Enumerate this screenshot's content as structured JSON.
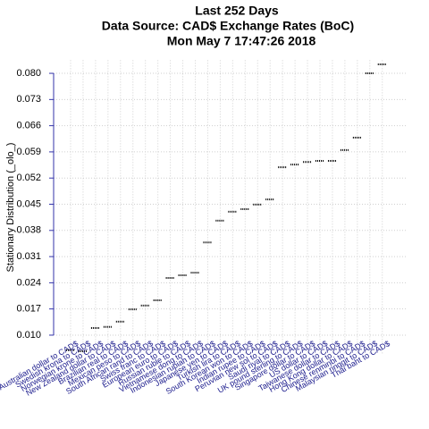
{
  "chart_data": {
    "type": "point",
    "title": [
      "Last 252 Days",
      "Data Source: CAD$ Exchange Rates (BoC)",
      "Mon May  7 17:47:26 2018"
    ],
    "y_label": "Stationary Distribution (_olo_)",
    "categories": [
      "Australian dollar to CAD$",
      "Swedish krona to CAD$",
      "Norwegian krone to CAD$",
      "New Zealand dollar to CAD$",
      "Brazilian real to CAD$",
      "Mexican peso to CAD$",
      "South African rand to CAD$",
      "Swiss franc to CAD$",
      "European euro to CAD$",
      "Russian ruble to CAD$",
      "Vietnamese dong to CAD$",
      "Indonesian rupiah to CAD$",
      "Japanese yen to CAD$",
      "Turkish lira to CAD$",
      "South Korean won to CAD$",
      "Indian rupee to CAD$",
      "Peruvian new sol to CAD$",
      "Saudi riyal to CAD$",
      "UK pound sterling to CAD$",
      "Singapore dollar to CAD$",
      "US dollar to CAD$",
      "Taiwanese dollar to CAD$",
      "Hong Kong dollar to CAD$",
      "Chinese renminbi to CAD$",
      "Malaysian ringgit to CAD$",
      "Thai baht to CAD$"
    ],
    "values": [
      0.006,
      0.0057,
      0.0119,
      0.0122,
      0.0136,
      0.0169,
      0.0179,
      0.0193,
      0.0253,
      0.026,
      0.0267,
      0.0348,
      0.0406,
      0.043,
      0.0437,
      0.0449,
      0.0463,
      0.0549,
      0.0556,
      0.0563,
      0.0566,
      0.0566,
      0.0595,
      0.0628,
      0.08,
      0.0824
    ],
    "color": "#000000",
    "ylim": [
      0.005,
      0.0835
    ],
    "yticks": [
      {
        "value": 0.01,
        "label": "0.010"
      },
      {
        "value": 0.017,
        "label": "0.017"
      },
      {
        "value": 0.024,
        "label": "0.024"
      },
      {
        "value": 0.031,
        "label": "0.031"
      },
      {
        "value": 0.038,
        "label": "0.038"
      },
      {
        "value": 0.045,
        "label": "0.045"
      },
      {
        "value": 0.052,
        "label": "0.052"
      },
      {
        "value": 0.059,
        "label": "0.059"
      },
      {
        "value": 0.066,
        "label": "0.066"
      },
      {
        "value": 0.073,
        "label": "0.073"
      },
      {
        "value": 0.08,
        "label": "0.080"
      }
    ],
    "grid": true
  }
}
